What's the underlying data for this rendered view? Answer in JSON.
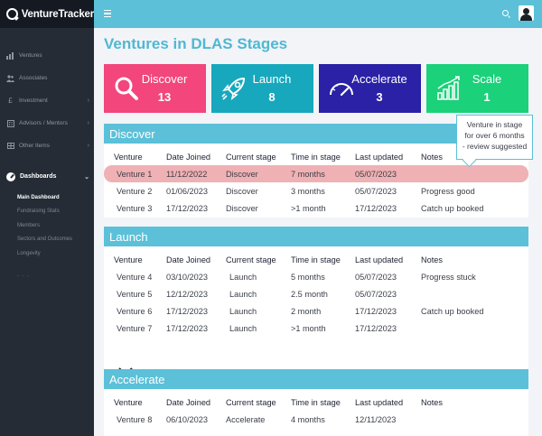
{
  "app": {
    "name": "VentureTracker"
  },
  "sidebar": {
    "items": [
      {
        "label": "Ventures",
        "icon": "bar-chart-icon"
      },
      {
        "label": "Associates",
        "icon": "users-icon"
      },
      {
        "label": "Investment",
        "icon": "pound-icon"
      },
      {
        "label": "Advisors / Mentors",
        "icon": "building-icon"
      },
      {
        "label": "Other Items",
        "icon": "grid-icon"
      }
    ],
    "section": {
      "label": "Dashboards",
      "icon": "gauge-icon"
    },
    "sub_items": [
      {
        "label": "Main Dashboard",
        "active": true
      },
      {
        "label": "Fundraising Stats",
        "active": false
      },
      {
        "label": "Members",
        "active": false
      },
      {
        "label": "Sectors and Outcomes",
        "active": false
      },
      {
        "label": "Longevity",
        "active": false
      }
    ],
    "more": "- - -"
  },
  "page": {
    "title": "Ventures in DLAS Stages"
  },
  "cards": [
    {
      "label": "Discover",
      "count": "13",
      "color": "#f2467c",
      "icon": "search-icon"
    },
    {
      "label": "Launch",
      "count": "8",
      "color": "#17a8bd",
      "icon": "rocket-icon"
    },
    {
      "label": "Accelerate",
      "count": "3",
      "color": "#2a21a6",
      "icon": "speedometer-icon"
    },
    {
      "label": "Scale",
      "count": "1",
      "color": "#1bd17a",
      "icon": "growth-chart-icon"
    }
  ],
  "columns": [
    "Venture",
    "Date Joined",
    "Current stage",
    "Time in stage",
    "Last updated",
    "Notes"
  ],
  "panels": {
    "discover": {
      "title": "Discover",
      "rows": [
        {
          "venture": "Venture 1",
          "date": "11/12/2022",
          "stage": "Discover",
          "time": "7 months",
          "updated": "05/07/2023",
          "notes": ""
        },
        {
          "venture": "Venture 2",
          "date": "01/06/2023",
          "stage": "Discover",
          "time": "3 months",
          "updated": "05/07/2023",
          "notes": "Progress good"
        },
        {
          "venture": "Venture 3",
          "date": "17/12/2023",
          "stage": "Discover",
          "time": ">1 month",
          "updated": "17/12/2023",
          "notes": "Catch up booked"
        }
      ]
    },
    "launch": {
      "title": "Launch",
      "rows": [
        {
          "venture": "Venture 4",
          "date": "03/10/2023",
          "stage": "Launch",
          "time": "5 months",
          "updated": "05/07/2023",
          "notes": "Progress stuck"
        },
        {
          "venture": "Venture 5",
          "date": "12/12/2023",
          "stage": "Launch",
          "time": "2.5 month",
          "updated": "05/07/2023",
          "notes": ""
        },
        {
          "venture": "Venture 6",
          "date": "17/12/2023",
          "stage": "Launch",
          "time": "2 month",
          "updated": "17/12/2023",
          "notes": "Catch up booked"
        },
        {
          "venture": "Venture 7",
          "date": "17/12/2023",
          "stage": "Launch",
          "time": ">1 month",
          "updated": "17/12/2023",
          "notes": ""
        }
      ]
    },
    "accelerate": {
      "title": "Accelerate",
      "rows": [
        {
          "venture": "Venture 8",
          "date": "06/10/2023",
          "stage": "Accelerate",
          "time": "4 months",
          "updated": "12/11/2023",
          "notes": ""
        }
      ]
    }
  },
  "tooltip": {
    "line1": "Venture in stage",
    "line2": "for over 6 months",
    "line3": "- review suggested"
  }
}
